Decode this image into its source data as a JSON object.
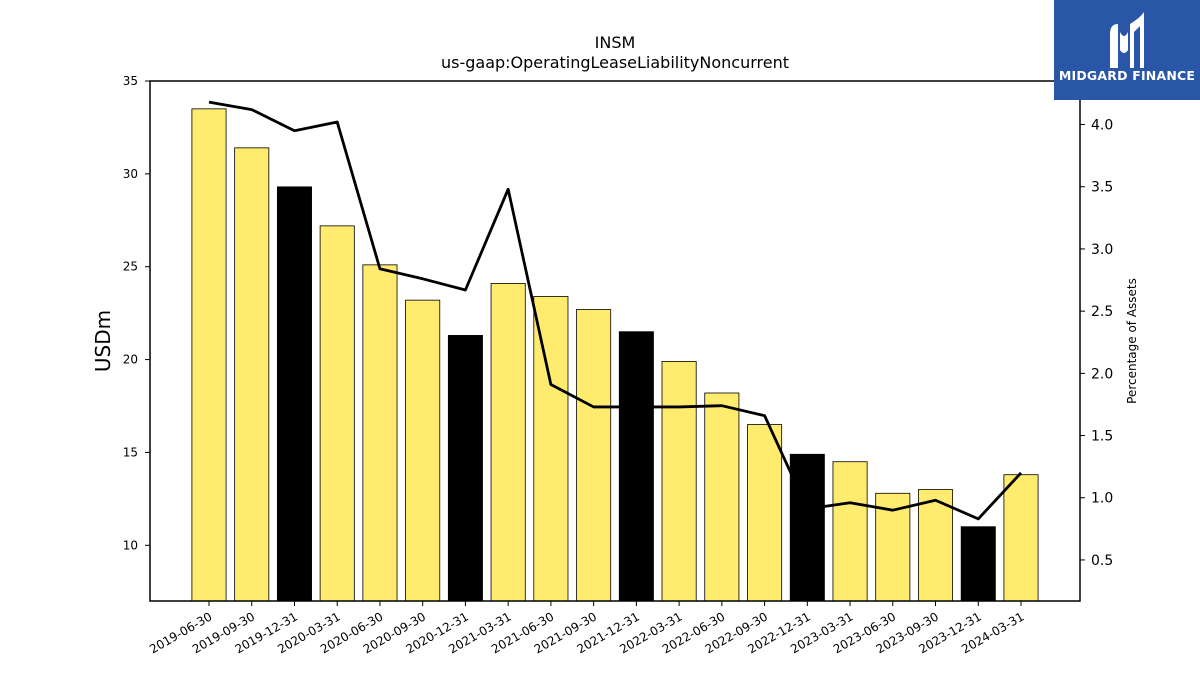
{
  "logo": {
    "text": "MIDGARD FINANCE",
    "icon": "midgard-m-logo-icon"
  },
  "chart_data": {
    "type": "bar",
    "title": "INSM",
    "subtitle": "us-gaap:OperatingLeaseLiabilityNoncurrent",
    "ylabel": "USDm",
    "y2label": "Percentage of Assets",
    "ylim": [
      7,
      35
    ],
    "y2lim": [
      0.17,
      4.35
    ],
    "yticks": [
      10,
      15,
      20,
      25,
      30,
      35
    ],
    "y2ticks": [
      0.5,
      1.0,
      1.5,
      2.0,
      2.5,
      3.0,
      3.5,
      4.0
    ],
    "grid": false,
    "colors": {
      "bar": "#ffec6e",
      "bar_q4": "#000000",
      "line": "#000000",
      "edge": "#000000"
    },
    "categories": [
      "2019-06-30",
      "2019-09-30",
      "2019-12-31",
      "2020-03-31",
      "2020-06-30",
      "2020-09-30",
      "2020-12-31",
      "2021-03-31",
      "2021-06-30",
      "2021-09-30",
      "2021-12-31",
      "2022-03-31",
      "2022-06-30",
      "2022-09-30",
      "2022-12-31",
      "2023-03-31",
      "2023-06-30",
      "2023-09-30",
      "2023-12-31",
      "2024-03-31"
    ],
    "series": [
      {
        "type": "bar",
        "axis": "left",
        "values": [
          33.5,
          31.4,
          29.3,
          27.2,
          25.1,
          23.2,
          21.3,
          24.1,
          23.4,
          22.7,
          21.5,
          19.9,
          18.2,
          16.5,
          14.9,
          14.5,
          12.8,
          13.0,
          11.0,
          13.8
        ],
        "highlight": [
          false,
          false,
          true,
          false,
          false,
          false,
          true,
          false,
          false,
          false,
          true,
          false,
          false,
          false,
          true,
          false,
          false,
          false,
          true,
          false
        ]
      },
      {
        "type": "line",
        "axis": "right",
        "values": [
          4.18,
          4.12,
          3.95,
          4.02,
          2.84,
          2.76,
          2.67,
          3.48,
          1.91,
          1.73,
          1.73,
          1.73,
          1.74,
          1.66,
          0.91,
          0.96,
          0.9,
          0.98,
          0.83,
          1.2
        ]
      }
    ]
  }
}
